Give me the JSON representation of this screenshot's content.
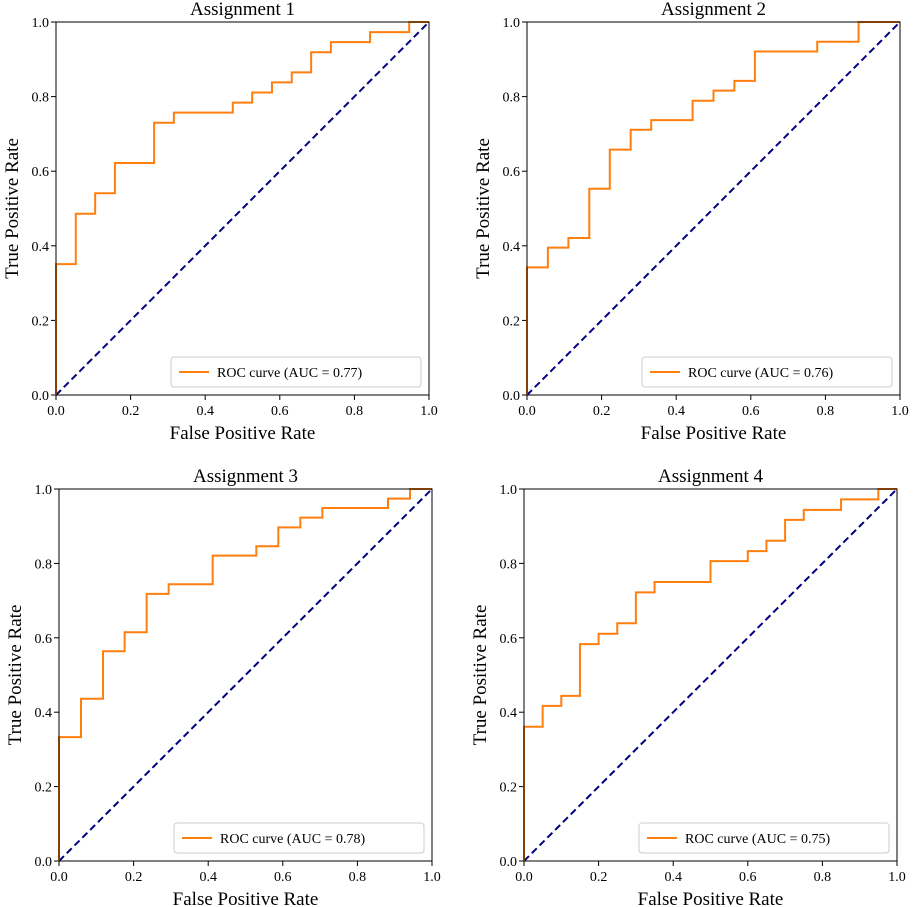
{
  "colors": {
    "roc": "#ff7f0e",
    "chance": "#000080",
    "axis": "#000000",
    "legend_border": "#cccccc"
  },
  "chart_data": [
    {
      "type": "line",
      "title": "Assignment 1",
      "xlabel": "False Positive Rate",
      "ylabel": "True Positive Rate",
      "xlim": [
        0,
        1
      ],
      "ylim": [
        0,
        1
      ],
      "xticks": [
        "0.0",
        "0.2",
        "0.4",
        "0.6",
        "0.8",
        "1.0"
      ],
      "yticks": [
        "0.0",
        "0.2",
        "0.4",
        "0.6",
        "0.8",
        "1.0"
      ],
      "legend_position": "lower-right",
      "series": [
        {
          "name": "ROC curve (AUC = 0.77)",
          "style": "solid",
          "fpr": [
            0,
            0,
            0,
            0.053,
            0.053,
            0.105,
            0.105,
            0.158,
            0.158,
            0.263,
            0.263,
            0.316,
            0.316,
            0.474,
            0.474,
            0.526,
            0.526,
            0.579,
            0.579,
            0.632,
            0.632,
            0.684,
            0.684,
            0.737,
            0.737,
            0.842,
            0.842,
            0.947,
            0.947,
            1
          ],
          "tpr": [
            0,
            0.351,
            0.351,
            0.351,
            0.486,
            0.486,
            0.541,
            0.541,
            0.622,
            0.622,
            0.73,
            0.73,
            0.757,
            0.757,
            0.784,
            0.784,
            0.811,
            0.811,
            0.838,
            0.838,
            0.865,
            0.865,
            0.919,
            0.919,
            0.946,
            0.946,
            0.973,
            0.973,
            1,
            1
          ]
        },
        {
          "name": "chance",
          "style": "dashed",
          "fpr": [
            0,
            1
          ],
          "tpr": [
            0,
            1
          ]
        }
      ]
    },
    {
      "type": "line",
      "title": "Assignment 2",
      "xlabel": "False Positive Rate",
      "ylabel": "True Positive Rate",
      "xlim": [
        0,
        1
      ],
      "ylim": [
        0,
        1
      ],
      "xticks": [
        "0.0",
        "0.2",
        "0.4",
        "0.6",
        "0.8",
        "1.0"
      ],
      "yticks": [
        "0.0",
        "0.2",
        "0.4",
        "0.6",
        "0.8",
        "1.0"
      ],
      "legend_position": "lower-right",
      "series": [
        {
          "name": "ROC curve (AUC = 0.76)",
          "style": "solid",
          "fpr": [
            0,
            0,
            0,
            0.056,
            0.056,
            0.111,
            0.111,
            0.167,
            0.167,
            0.222,
            0.222,
            0.278,
            0.278,
            0.333,
            0.333,
            0.444,
            0.444,
            0.5,
            0.5,
            0.556,
            0.556,
            0.611,
            0.611,
            0.778,
            0.778,
            0.889,
            0.889,
            1
          ],
          "tpr": [
            0,
            0.342,
            0.342,
            0.342,
            0.395,
            0.395,
            0.421,
            0.421,
            0.553,
            0.553,
            0.658,
            0.658,
            0.711,
            0.711,
            0.737,
            0.737,
            0.789,
            0.789,
            0.816,
            0.816,
            0.842,
            0.842,
            0.921,
            0.921,
            0.947,
            0.947,
            1,
            1
          ]
        },
        {
          "name": "chance",
          "style": "dashed",
          "fpr": [
            0,
            1
          ],
          "tpr": [
            0,
            1
          ]
        }
      ]
    },
    {
      "type": "line",
      "title": "Assignment 3",
      "xlabel": "False Positive Rate",
      "ylabel": "True Positive Rate",
      "xlim": [
        0,
        1
      ],
      "ylim": [
        0,
        1
      ],
      "xticks": [
        "0.0",
        "0.2",
        "0.4",
        "0.6",
        "0.8",
        "1.0"
      ],
      "yticks": [
        "0.0",
        "0.2",
        "0.4",
        "0.6",
        "0.8",
        "1.0"
      ],
      "legend_position": "lower-right",
      "series": [
        {
          "name": "ROC curve (AUC = 0.78)",
          "style": "solid",
          "fpr": [
            0,
            0,
            0,
            0.059,
            0.059,
            0.118,
            0.118,
            0.176,
            0.176,
            0.235,
            0.235,
            0.294,
            0.294,
            0.412,
            0.412,
            0.529,
            0.529,
            0.588,
            0.588,
            0.647,
            0.647,
            0.706,
            0.706,
            0.882,
            0.882,
            0.941,
            0.941,
            1
          ],
          "tpr": [
            0,
            0.333,
            0.333,
            0.333,
            0.436,
            0.436,
            0.564,
            0.564,
            0.615,
            0.615,
            0.718,
            0.718,
            0.744,
            0.744,
            0.821,
            0.821,
            0.846,
            0.846,
            0.897,
            0.897,
            0.923,
            0.923,
            0.949,
            0.949,
            0.974,
            0.974,
            1,
            1
          ]
        },
        {
          "name": "chance",
          "style": "dashed",
          "fpr": [
            0,
            1
          ],
          "tpr": [
            0,
            1
          ]
        }
      ]
    },
    {
      "type": "line",
      "title": "Assignment 4",
      "xlabel": "False Positive Rate",
      "ylabel": "True Positive Rate",
      "xlim": [
        0,
        1
      ],
      "ylim": [
        0,
        1
      ],
      "xticks": [
        "0.0",
        "0.2",
        "0.4",
        "0.6",
        "0.8",
        "1.0"
      ],
      "yticks": [
        "0.0",
        "0.2",
        "0.4",
        "0.6",
        "0.8",
        "1.0"
      ],
      "legend_position": "lower-right",
      "series": [
        {
          "name": "ROC curve (AUC = 0.75)",
          "style": "solid",
          "fpr": [
            0,
            0,
            0,
            0.05,
            0.05,
            0.1,
            0.1,
            0.15,
            0.15,
            0.2,
            0.2,
            0.25,
            0.25,
            0.3,
            0.3,
            0.35,
            0.35,
            0.5,
            0.5,
            0.6,
            0.6,
            0.65,
            0.65,
            0.7,
            0.7,
            0.75,
            0.75,
            0.85,
            0.85,
            0.95,
            0.95,
            1
          ],
          "tpr": [
            0,
            0.361,
            0.361,
            0.361,
            0.417,
            0.417,
            0.444,
            0.444,
            0.583,
            0.583,
            0.611,
            0.611,
            0.639,
            0.639,
            0.722,
            0.722,
            0.75,
            0.75,
            0.806,
            0.806,
            0.833,
            0.833,
            0.861,
            0.861,
            0.917,
            0.917,
            0.944,
            0.944,
            0.972,
            0.972,
            1,
            1
          ]
        },
        {
          "name": "chance",
          "style": "dashed",
          "fpr": [
            0,
            1
          ],
          "tpr": [
            0,
            1
          ]
        }
      ]
    }
  ]
}
